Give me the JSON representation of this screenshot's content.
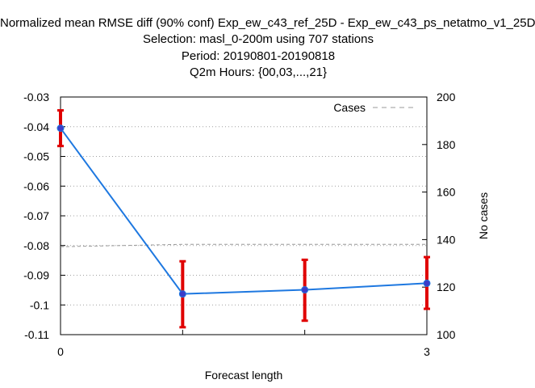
{
  "chart_data": {
    "type": "line",
    "title_lines": [
      "Normalized mean RMSE diff (90% conf) Exp_ew_c43_ref_25D - Exp_ew_c43_ps_netatmo_v1_25D",
      "Selection: masl_0-200m using   707 stations",
      "Period: 20190801-20190818",
      "Q2m   Hours: {00,03,...,21}"
    ],
    "xlabel": "Forecast length",
    "ylabel": "",
    "y2label": "No cases",
    "xlim": [
      0,
      3
    ],
    "ylim": [
      -0.11,
      -0.03
    ],
    "y2lim": [
      100,
      200
    ],
    "x_ticks": [
      "0",
      "3"
    ],
    "y_ticks": [
      "-0.03",
      "-0.04",
      "-0.05",
      "-0.06",
      "-0.07",
      "-0.08",
      "-0.09",
      "-0.1",
      "-0.11"
    ],
    "y2_ticks": [
      "200",
      "180",
      "160",
      "140",
      "120",
      "100"
    ],
    "grid": true,
    "legend_position": "top-right",
    "colors": {
      "line": "#1e78e0",
      "marker": "#3c3cc8",
      "errorbar": "#e00000",
      "cases": "#999999"
    },
    "series": [
      {
        "x": [
          0,
          1,
          2,
          3
        ],
        "y": [
          -0.0405,
          -0.0963,
          -0.0949,
          -0.0927
        ],
        "ci_low": [
          -0.0465,
          -0.1075,
          -0.1053,
          -0.1013
        ],
        "ci_high": [
          -0.0345,
          -0.0853,
          -0.0848,
          -0.0839
        ]
      },
      {
        "name": "Cases",
        "axis": "y2",
        "x": [
          0,
          1,
          2,
          3
        ],
        "values": [
          137,
          138,
          138,
          138
        ]
      }
    ]
  }
}
